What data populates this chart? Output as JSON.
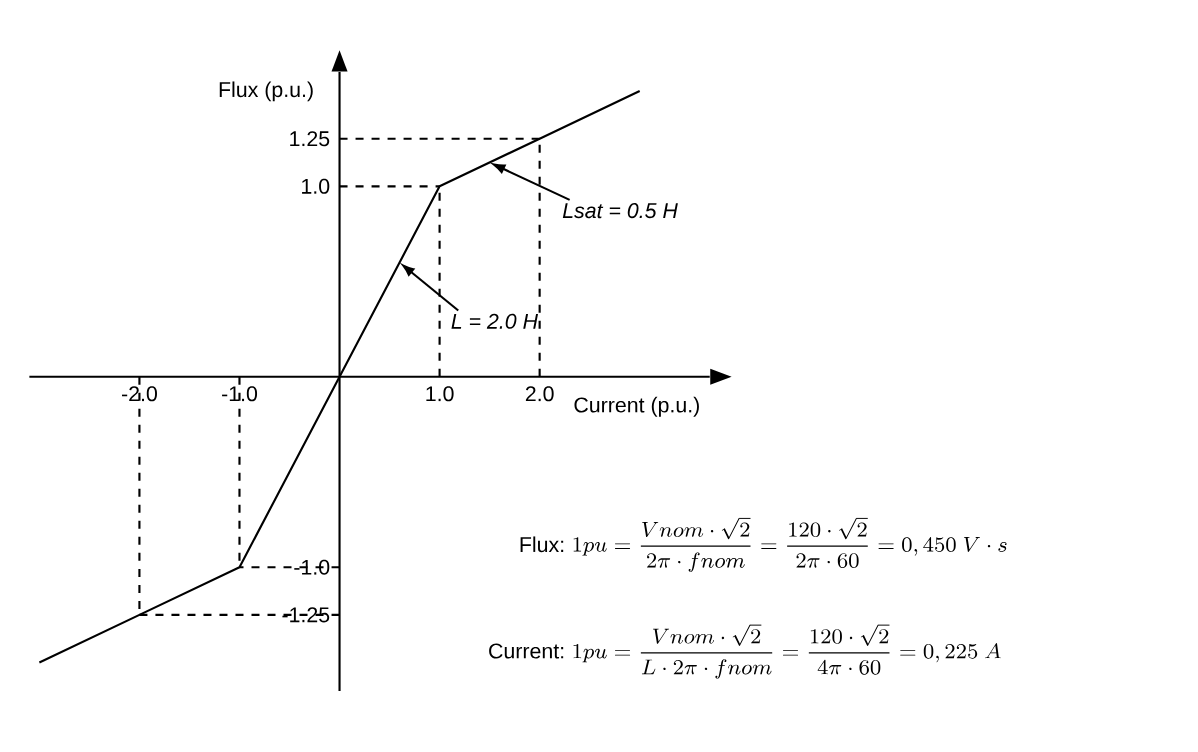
{
  "chart_data": {
    "type": "line",
    "xlabel": "Current (p.u.)",
    "ylabel": "Flux (p.u.)",
    "x": [
      -3,
      -2,
      -1,
      0,
      1,
      2,
      3
    ],
    "values": [
      -1.5,
      -1.25,
      -1,
      0,
      1,
      1.25,
      1.5
    ],
    "color": "#000000",
    "xlim": [
      -3.1,
      3.7
    ],
    "ylim": [
      -1.65,
      1.6
    ],
    "xticks": [
      {
        "value": -2,
        "label": "-2.0"
      },
      {
        "value": -1,
        "label": "-1.0"
      },
      {
        "value": 1,
        "label": "1.0"
      },
      {
        "value": 2,
        "label": "2.0"
      }
    ],
    "yticks": [
      {
        "value": -1.25,
        "label": "-1.25"
      },
      {
        "value": -1,
        "label": "-1.0"
      },
      {
        "value": 1,
        "label": "1.0"
      },
      1.25
    ],
    "ref_lines": [
      {
        "axis": "x",
        "value": -2,
        "line_style": "dashed"
      },
      {
        "axis": "x",
        "value": -1,
        "line_style": "dashed"
      },
      {
        "axis": "x",
        "value": 1,
        "line_style": "dashed"
      },
      {
        "axis": "x",
        "value": 2,
        "line_style": "dashed"
      },
      {
        "axis": "y",
        "value": -1.25,
        "line_style": "dashed"
      },
      {
        "axis": "y",
        "value": -1,
        "line_style": "dashed"
      },
      {
        "axis": "y",
        "value": 1,
        "line_style": "dashed"
      },
      {
        "axis": "y",
        "value": 1.25,
        "line_style": "dashed"
      }
    ],
    "annotations": [
      {
        "text": "Lsat = 0.5 H",
        "x": 1.5,
        "y": 1.125
      },
      {
        "text": "L = 2.0 H",
        "x": 0.6,
        "y": 0.6
      },
      "Flux:",
      "1pu = \\frac{Vnom\\cdot\\sqrt{2}}{2\\pi\\cdot fnom} = \\frac{120\\cdot\\sqrt{2}}{2\\pi\\cdot 60} = 0,450\\ V\\cdot s",
      "Current:",
      "1pu = \\frac{Vnom\\cdot\\sqrt{2}}{L\\cdot 2\\pi\\cdot fnom} = \\frac{120\\cdot\\sqrt{2}}{4\\pi\\cdot 60} = 0,225\\ A"
    ],
    "line_style": "solid",
    "marker": "none"
  }
}
